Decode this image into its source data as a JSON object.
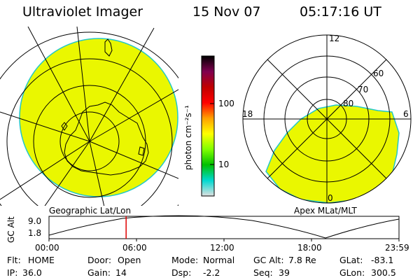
{
  "header": {
    "instrument": "Ultraviolet Imager",
    "date": "15 Nov 07",
    "time": "05:17:16 UT"
  },
  "left_panel": {
    "caption": "Geographic Lat/Lon",
    "fill_color": "#eaf700",
    "edge_color": "#22c8c8"
  },
  "right_panel": {
    "caption": "Apex MLat/MLT",
    "mlt_labels": {
      "top": "12",
      "bottom": "0",
      "left": "18",
      "right": "6"
    },
    "mlat_labels": [
      "60",
      "70",
      "80"
    ],
    "fill_color": "#eaf700"
  },
  "colorbar": {
    "unit_label": "photon cm⁻²s⁻¹",
    "ticks": [
      "100",
      "10"
    ],
    "stops": [
      "#e0e0e0",
      "#00d8d0",
      "#00c000",
      "#80ff00",
      "#ffff00",
      "#ffa000",
      "#ff0000",
      "#c00000",
      "#800050",
      "#000000"
    ]
  },
  "timeline": {
    "axis_label": "GC Alt",
    "y_ticks": [
      "9.0",
      "1.8"
    ],
    "x_ticks": [
      "00:00",
      "06:00",
      "12:00",
      "18:00",
      "23:59"
    ],
    "current_time_hours": 5.288,
    "marker_color": "#e00000"
  },
  "info": {
    "row1": [
      {
        "label": "Flt:",
        "value": "HOME"
      },
      {
        "label": "Door:",
        "value": "Open"
      },
      {
        "label": "Mode:",
        "value": "Normal"
      },
      {
        "label": "GC Alt:",
        "value": "7.8 Re"
      },
      {
        "label": "GLat:",
        "value": "-83.1"
      }
    ],
    "row2": [
      {
        "label": "IP:",
        "value": "36.0"
      },
      {
        "label": "Gain:",
        "value": "14"
      },
      {
        "label": "Dsp:",
        "value": "-2.2"
      },
      {
        "label": "Seq:",
        "value": "39"
      },
      {
        "label": "GLon:",
        "value": "300.5"
      }
    ]
  }
}
